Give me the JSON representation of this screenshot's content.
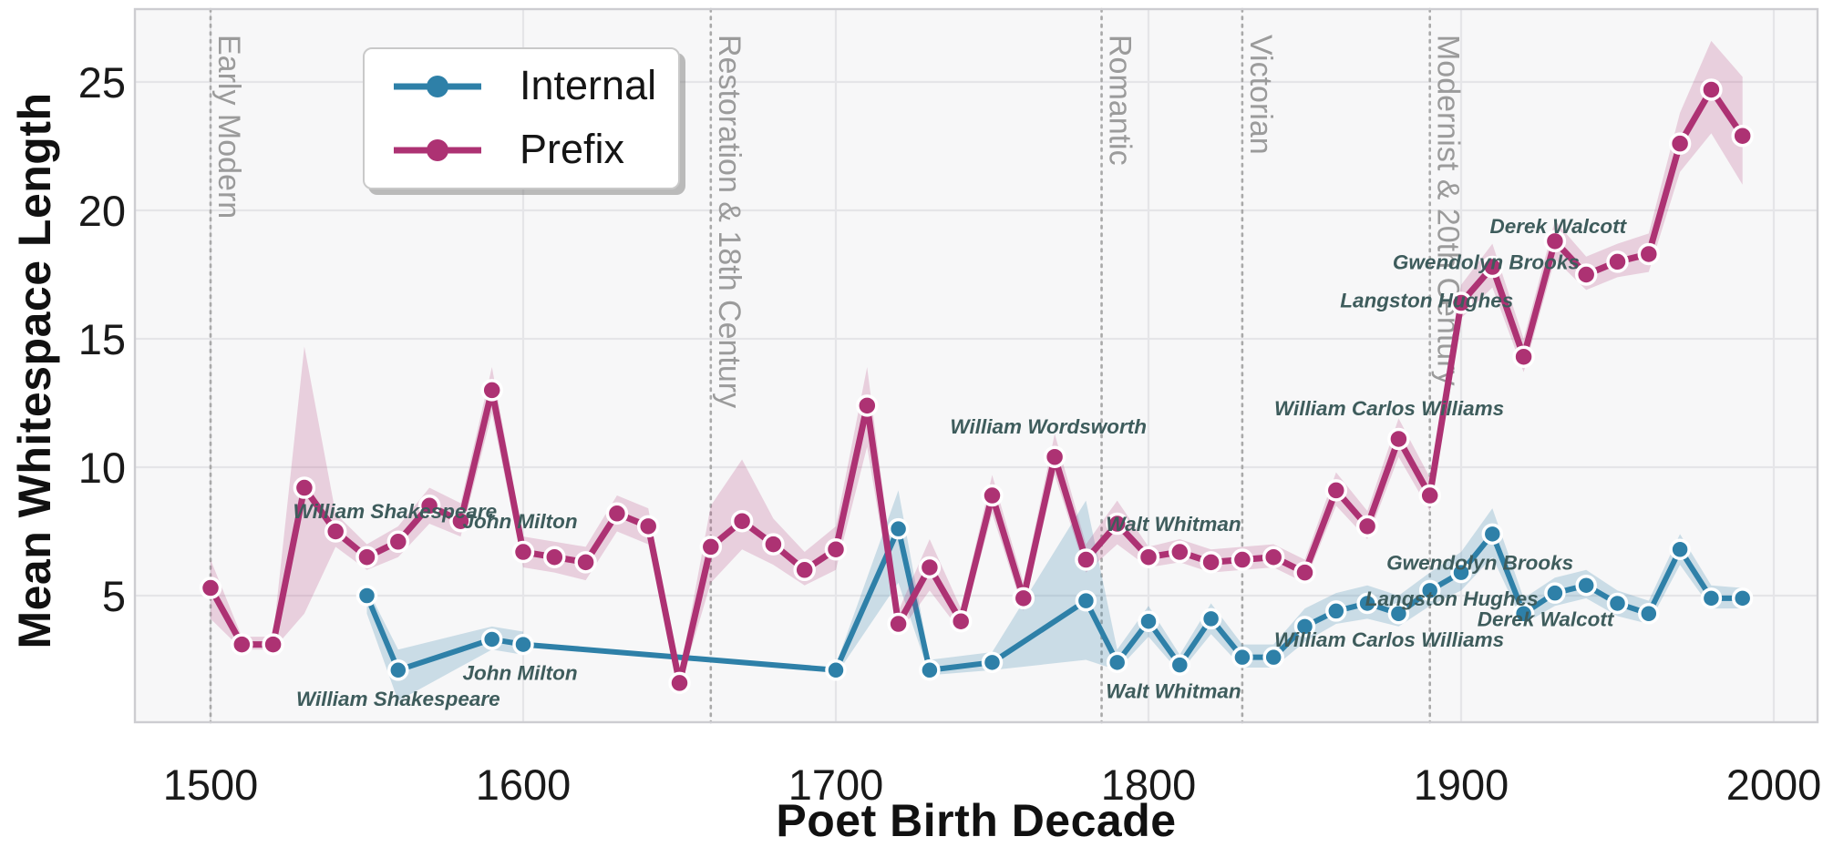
{
  "figure": {
    "background": "#FFFFFF",
    "plot_background": "#F7F7F8",
    "grid_color": "#E5E5E8",
    "spine_color": "#CDCDD1",
    "tick_text_color": "#1A1A1A",
    "period_line_color": "#A9A9A9",
    "period_text_color": "#9B9B9B",
    "annotation_color": "#3E5C5C"
  },
  "axes": {
    "x_label": "Poet Birth Decade",
    "y_label": "Mean Whitespace Length",
    "x_ticks": [
      1500,
      1600,
      1700,
      1800,
      1900,
      2000
    ],
    "y_ticks": [
      5,
      10,
      15,
      20,
      25
    ],
    "x_range": [
      1476,
      2014
    ],
    "y_range": [
      0,
      27.8
    ],
    "grid": true
  },
  "legend": {
    "position": "upper-left",
    "items": [
      {
        "label": "Internal",
        "color": "#2E80A8"
      },
      {
        "label": "Prefix",
        "color": "#AD3273"
      }
    ]
  },
  "periods": [
    {
      "label": "Early Modern",
      "year": 1500
    },
    {
      "label": "Restoration & 18th Century",
      "year": 1660
    },
    {
      "label": "Romantic",
      "year": 1785
    },
    {
      "label": "Victorian",
      "year": 1830
    },
    {
      "label": "Modernist & 20th Century",
      "year": 1890
    }
  ],
  "chart_data": {
    "type": "line",
    "title": "",
    "xlabel": "Poet Birth Decade",
    "ylabel": "Mean Whitespace Length",
    "x": [
      1500,
      1510,
      1520,
      1530,
      1540,
      1550,
      1560,
      1570,
      1580,
      1590,
      1600,
      1610,
      1620,
      1630,
      1640,
      1650,
      1660,
      1670,
      1680,
      1690,
      1700,
      1710,
      1720,
      1730,
      1740,
      1750,
      1760,
      1770,
      1780,
      1790,
      1800,
      1810,
      1820,
      1830,
      1840,
      1850,
      1860,
      1870,
      1880,
      1890,
      1900,
      1910,
      1920,
      1930,
      1940,
      1950,
      1960,
      1970,
      1980,
      1990
    ],
    "series": [
      {
        "name": "Internal",
        "color": "#2E80A8",
        "band_opacity": 0.22,
        "values": [
          null,
          null,
          null,
          null,
          null,
          5.0,
          2.1,
          null,
          null,
          3.3,
          3.1,
          null,
          null,
          null,
          null,
          null,
          null,
          null,
          null,
          null,
          2.1,
          null,
          7.6,
          2.1,
          null,
          2.4,
          null,
          null,
          4.8,
          2.4,
          4.0,
          2.3,
          4.1,
          2.6,
          2.6,
          3.8,
          4.4,
          4.7,
          4.3,
          5.2,
          5.9,
          7.4,
          4.3,
          5.1,
          5.4,
          4.7,
          4.3,
          6.8,
          4.9,
          4.9
        ],
        "ci_lower": [
          null,
          null,
          null,
          null,
          null,
          4.3,
          0.9,
          null,
          null,
          2.9,
          2.7,
          null,
          null,
          null,
          null,
          null,
          null,
          null,
          null,
          null,
          1.9,
          null,
          5.5,
          1.9,
          null,
          2.1,
          null,
          null,
          2.5,
          2.1,
          3.4,
          2.0,
          3.5,
          2.2,
          2.2,
          3.2,
          3.9,
          4.1,
          3.8,
          4.6,
          5.2,
          6.5,
          3.9,
          4.6,
          4.9,
          4.2,
          3.9,
          6.2,
          4.5,
          4.5
        ],
        "ci_upper": [
          null,
          null,
          null,
          null,
          null,
          5.3,
          2.9,
          null,
          null,
          3.8,
          3.6,
          null,
          null,
          null,
          null,
          null,
          null,
          null,
          null,
          null,
          2.3,
          null,
          9.1,
          2.5,
          null,
          2.8,
          null,
          null,
          8.7,
          2.9,
          4.6,
          2.7,
          4.7,
          3.1,
          3.1,
          4.5,
          5.1,
          5.4,
          5.0,
          5.9,
          6.7,
          8.4,
          4.9,
          5.7,
          6.0,
          5.2,
          4.8,
          7.4,
          5.4,
          5.3
        ]
      },
      {
        "name": "Prefix",
        "color": "#AD3273",
        "band_opacity": 0.2,
        "values": [
          5.3,
          3.1,
          3.1,
          9.2,
          7.5,
          6.5,
          7.1,
          8.5,
          7.9,
          13.0,
          6.7,
          6.5,
          6.3,
          8.2,
          7.7,
          1.6,
          6.9,
          7.9,
          7.0,
          6.0,
          6.8,
          12.4,
          3.9,
          6.1,
          4.0,
          8.9,
          4.9,
          10.4,
          6.4,
          7.8,
          6.5,
          6.7,
          6.3,
          6.4,
          6.5,
          5.9,
          9.1,
          7.7,
          11.1,
          8.9,
          16.4,
          17.8,
          14.3,
          18.8,
          17.5,
          18.0,
          18.3,
          22.6,
          24.7,
          22.9
        ],
        "ci_lower": [
          4.1,
          2.9,
          2.9,
          4.3,
          6.9,
          6.0,
          6.5,
          7.8,
          7.3,
          12.1,
          6.1,
          5.9,
          5.6,
          7.5,
          7.0,
          1.4,
          5.5,
          6.8,
          6.2,
          5.4,
          6.0,
          10.8,
          3.5,
          5.2,
          3.6,
          8.2,
          4.4,
          9.7,
          5.9,
          7.0,
          6.1,
          6.3,
          5.9,
          6.0,
          6.1,
          5.5,
          8.5,
          7.2,
          10.4,
          8.3,
          15.8,
          17.0,
          13.7,
          18.1,
          16.9,
          17.4,
          17.6,
          21.5,
          23.0,
          21.0
        ],
        "ci_upper": [
          6.4,
          3.4,
          3.4,
          14.7,
          8.2,
          7.0,
          7.7,
          9.2,
          8.6,
          13.9,
          7.3,
          7.1,
          6.9,
          8.9,
          8.4,
          1.9,
          8.5,
          10.3,
          8.0,
          6.7,
          7.7,
          13.9,
          4.4,
          7.2,
          4.5,
          9.7,
          5.5,
          11.3,
          7.0,
          8.7,
          6.9,
          7.2,
          6.8,
          6.9,
          7.0,
          6.4,
          9.8,
          8.3,
          11.9,
          9.6,
          17.1,
          18.7,
          15.0,
          19.6,
          18.2,
          18.7,
          19.1,
          23.8,
          26.6,
          25.2
        ]
      }
    ],
    "annotations": [
      {
        "series": "Prefix",
        "text": "William Shakespeare",
        "year": 1559,
        "value": 8.3
      },
      {
        "series": "Prefix",
        "text": "John Milton",
        "year": 1599,
        "value": 7.9
      },
      {
        "series": "Prefix",
        "text": "William Wordsworth",
        "year": 1768,
        "value": 11.6
      },
      {
        "series": "Prefix",
        "text": "Walt Whitman",
        "year": 1808,
        "value": 7.8
      },
      {
        "series": "Prefix",
        "text": "William Carlos Williams",
        "year": 1877,
        "value": 12.3
      },
      {
        "series": "Prefix",
        "text": "Langston Hughes",
        "year": 1889,
        "value": 16.5
      },
      {
        "series": "Prefix",
        "text": "Gwendolyn Brooks",
        "year": 1908,
        "value": 18.0
      },
      {
        "series": "Prefix",
        "text": "Derek Walcott",
        "year": 1931,
        "value": 19.4
      },
      {
        "series": "Internal",
        "text": "William Shakespeare",
        "year": 1560,
        "value": 1.0
      },
      {
        "series": "Internal",
        "text": "John Milton",
        "year": 1599,
        "value": 2.0
      },
      {
        "series": "Internal",
        "text": "Walt Whitman",
        "year": 1808,
        "value": 1.3
      },
      {
        "series": "Internal",
        "text": "William Carlos Williams",
        "year": 1877,
        "value": 3.3
      },
      {
        "series": "Internal",
        "text": "Langston Hughes",
        "year": 1897,
        "value": 4.9
      },
      {
        "series": "Internal",
        "text": "Gwendolyn Brooks",
        "year": 1906,
        "value": 6.3
      },
      {
        "series": "Internal",
        "text": "Derek Walcott",
        "year": 1927,
        "value": 4.1
      }
    ],
    "legend_entries": [
      "Internal",
      "Prefix"
    ],
    "legend_position": "upper-left"
  }
}
